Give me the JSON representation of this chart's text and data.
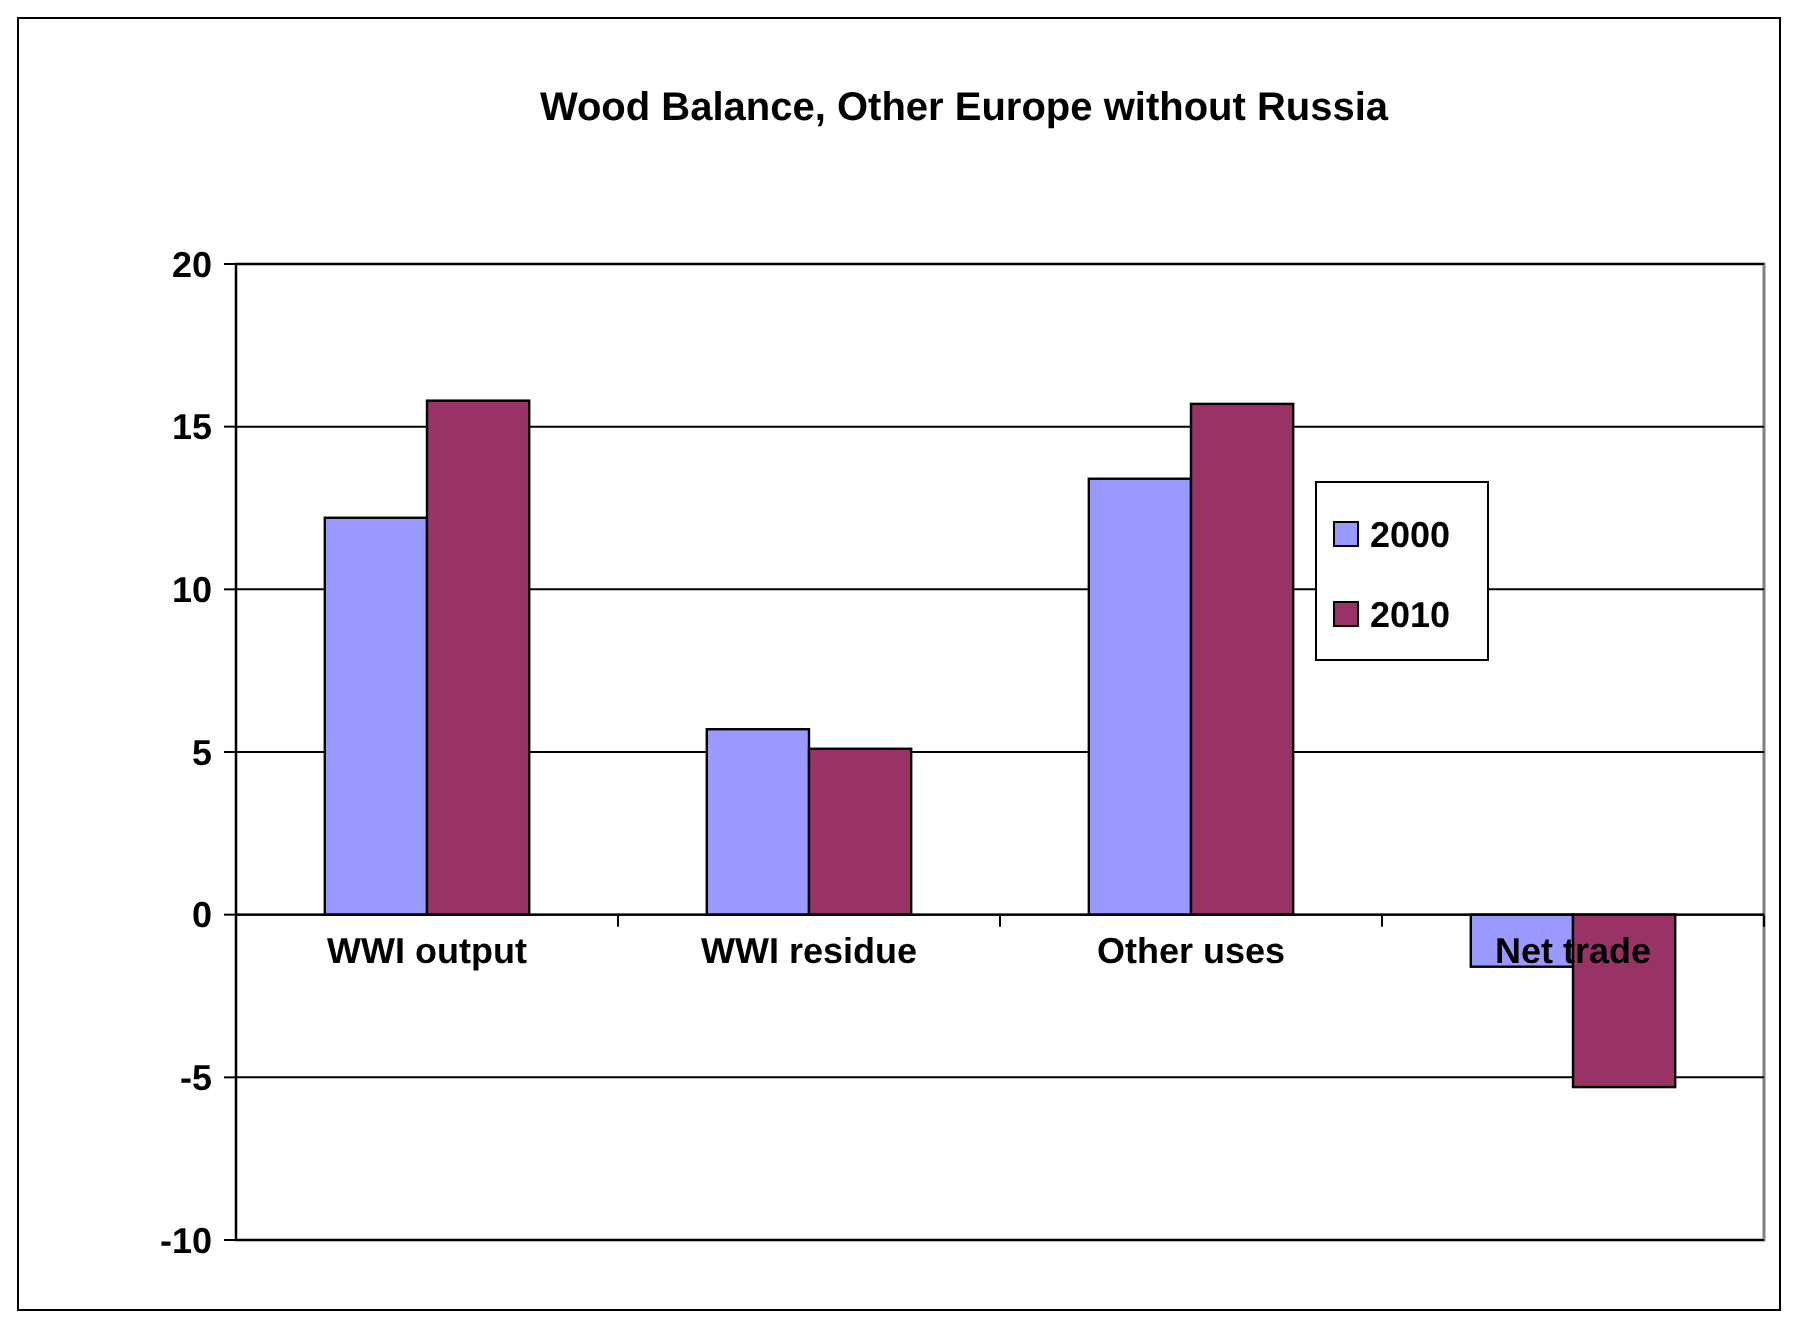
{
  "chart_data": {
    "type": "bar",
    "title": "Wood Balance, Other Europe without Russia",
    "categories": [
      "WWI output",
      "WWI residue",
      "Other uses",
      "Net trade"
    ],
    "series": [
      {
        "name": "2000",
        "color": "#9999ff",
        "values": [
          12.2,
          5.7,
          13.4,
          -1.6
        ]
      },
      {
        "name": "2010",
        "color": "#993366",
        "values": [
          15.8,
          5.1,
          15.7,
          -5.3
        ]
      }
    ],
    "ylim": [
      -10,
      20
    ],
    "yticks": [
      -10,
      -5,
      0,
      5,
      10,
      15,
      20
    ],
    "grid": "y",
    "legend": "right"
  }
}
